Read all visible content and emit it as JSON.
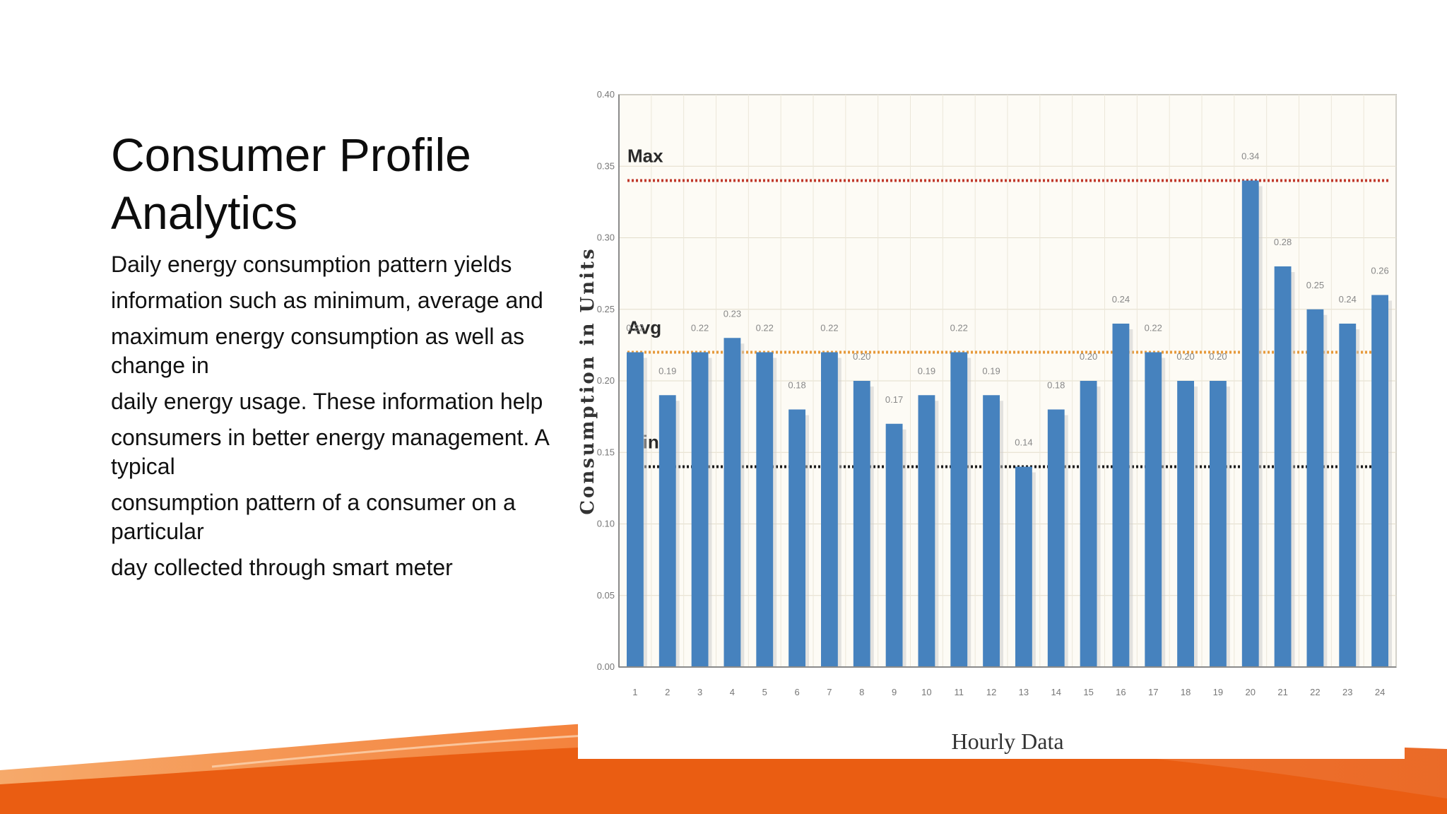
{
  "slide": {
    "title_lines": [
      "Consumer Profile",
      "Analytics"
    ],
    "body_lines": [
      "Daily energy consumption pattern yields",
      "information such as minimum, average and",
      "maximum energy consumption as well as change in",
      "daily energy usage. These information help",
      "consumers in better energy management. A typical",
      "consumption pattern of a consumer on a particular",
      "day collected through smart meter"
    ],
    "colors": {
      "accent_orange": "#f26a1b",
      "bar_blue": "#4682be"
    }
  },
  "chart_data": {
    "type": "bar",
    "title": "",
    "xlabel": "Hourly Data",
    "ylabel": "Consumption in Units",
    "categories": [
      "1",
      "2",
      "3",
      "4",
      "5",
      "6",
      "7",
      "8",
      "9",
      "10",
      "11",
      "12",
      "13",
      "14",
      "15",
      "16",
      "17",
      "18",
      "19",
      "20",
      "21",
      "22",
      "23",
      "24"
    ],
    "values": [
      0.22,
      0.19,
      0.22,
      0.23,
      0.22,
      0.18,
      0.22,
      0.2,
      0.17,
      0.19,
      0.22,
      0.19,
      0.14,
      0.18,
      0.2,
      0.24,
      0.22,
      0.2,
      0.2,
      0.34,
      0.28,
      0.25,
      0.24,
      0.26
    ],
    "data_labels": [
      "0.22",
      "0.19",
      "0.22",
      "0.23",
      "0.22",
      "0.18",
      "0.22",
      "0.20",
      "0.17",
      "0.19",
      "0.22",
      "0.19",
      "0.14",
      "0.18",
      "0.20",
      "0.24",
      "0.22",
      "0.20",
      "0.20",
      "0.34",
      "0.28",
      "0.25",
      "0.24",
      "0.26"
    ],
    "ylim": [
      0,
      0.4
    ],
    "yticks": [
      "0.00",
      "0.05",
      "0.10",
      "0.15",
      "0.20",
      "0.25",
      "0.30",
      "0.35",
      "0.40"
    ],
    "grid": true,
    "reference_lines": [
      {
        "label": "Max",
        "value": 0.34,
        "color": "#c0392b"
      },
      {
        "label": "Avg",
        "value": 0.22,
        "color": "#e69a3c"
      },
      {
        "label": "Min",
        "value": 0.14,
        "color": "#1a1a1a"
      }
    ]
  }
}
